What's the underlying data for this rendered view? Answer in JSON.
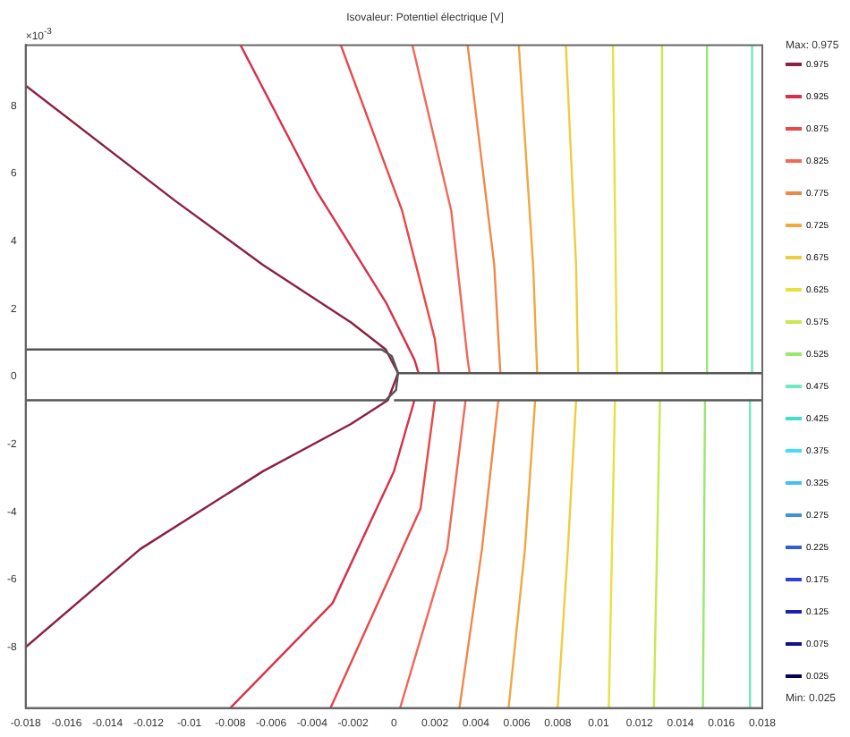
{
  "chart_data": {
    "type": "line",
    "title": "Isovaleur: Potentiel électrique [V]",
    "annotations": [
      "×10$^{-3}$",
      "Max: 0.975",
      "Min: 0.025"
    ],
    "xlim": [
      -0.018,
      0.018
    ],
    "xticks": [
      -0.018,
      -0.016,
      -0.014,
      -0.012,
      -0.01,
      -0.008,
      -0.006,
      -0.004,
      -0.002,
      0,
      0.002,
      0.004,
      0.006,
      0.008,
      0.01,
      0.012,
      0.014,
      0.016,
      0.018
    ],
    "ylim": [
      -9.8,
      9.8
    ],
    "yticks": [
      -8,
      -6,
      -4,
      -2,
      0,
      2,
      4,
      6,
      8
    ],
    "grid": false,
    "legend": "right",
    "marker": "none",
    "line_style": "solid",
    "series": [
      {
        "color": "#555555",
        "x": [
          -0.018,
          -0.0006,
          -0.0001,
          0.0002,
          0.0001,
          -0.0004,
          -0.018
        ],
        "values": [
          0.8,
          0.8,
          0.6,
          0.1,
          -0.4,
          -0.7,
          -0.7
        ]
      },
      {
        "color": "#555555",
        "x": [
          0.0002,
          0.018
        ],
        "values": [
          0.1,
          0.1
        ]
      },
      {
        "color": "#555555",
        "x": [
          0,
          0.018
        ],
        "values": [
          -0.7,
          -0.7
        ]
      },
      {
        "name": "0.975",
        "color": "#8b2040",
        "x": [
          -0.018,
          -0.0107,
          -0.0064,
          -0.0021,
          -0.0004,
          0.0002,
          -0.0003,
          -0.0021,
          -0.0064,
          -0.0124,
          -0.018
        ],
        "values": [
          8.6,
          5.2,
          3.3,
          1.6,
          0.8,
          0.1,
          -0.7,
          -1.4,
          -2.8,
          -5.1,
          -8.0
        ]
      },
      {
        "name": "0.925",
        "color": "#d83048",
        "x": [
          -0.0075,
          -0.0038,
          -0.0004,
          0.001,
          0.0012
        ],
        "values": [
          9.8,
          5.5,
          2.2,
          0.5,
          0.1
        ]
      },
      {
        "color": "#d83048",
        "x": [
          0.001,
          0,
          -0.003,
          -0.008
        ],
        "values": [
          -0.7,
          -2.8,
          -6.7,
          -9.8
        ]
      },
      {
        "name": "0.875",
        "color": "#e84848",
        "x": [
          -0.0026,
          0.0004,
          0.002,
          0.0022
        ],
        "values": [
          9.8,
          4.9,
          1.1,
          0.1
        ]
      },
      {
        "color": "#e84848",
        "x": [
          0.002,
          0.0013,
          -0.0031
        ],
        "values": [
          -0.7,
          -3.9,
          -9.8
        ]
      },
      {
        "name": "0.825",
        "color": "#f06858",
        "x": [
          0.0009,
          0.0028,
          0.0036,
          0.0037
        ],
        "values": [
          9.8,
          4.9,
          0.5,
          0.1
        ]
      },
      {
        "color": "#f06858",
        "x": [
          0.0035,
          0.0026,
          0.0003
        ],
        "values": [
          -0.7,
          -5.1,
          -9.8
        ]
      },
      {
        "name": "0.775",
        "color": "#f08848",
        "x": [
          0.0036,
          0.0049,
          0.0052
        ],
        "values": [
          9.8,
          3.3,
          0.1
        ]
      },
      {
        "color": "#f08848",
        "x": [
          0.0051,
          0.0043,
          0.0032
        ],
        "values": [
          -0.7,
          -5.1,
          -9.8
        ]
      },
      {
        "name": "0.725",
        "color": "#f0a840",
        "x": [
          0.0061,
          0.0068,
          0.007
        ],
        "values": [
          9.8,
          3.3,
          0.1
        ]
      },
      {
        "color": "#f0a840",
        "x": [
          0.0069,
          0.0064,
          0.0056
        ],
        "values": [
          -0.7,
          -5.1,
          -9.8
        ]
      },
      {
        "name": "0.675",
        "color": "#f0cc40",
        "x": [
          0.0084,
          0.0089,
          0.009
        ],
        "values": [
          9.8,
          3.3,
          0.1
        ]
      },
      {
        "color": "#f0cc40",
        "x": [
          0.0089,
          0.0085,
          0.008
        ],
        "values": [
          -0.7,
          -5.1,
          -9.8
        ]
      },
      {
        "name": "0.625",
        "color": "#e8e040",
        "x": [
          0.0107,
          0.0109
        ],
        "values": [
          9.8,
          0.1
        ]
      },
      {
        "color": "#e8e040",
        "x": [
          0.0108,
          0.0105
        ],
        "values": [
          -0.7,
          -9.8
        ]
      },
      {
        "name": "0.575",
        "color": "#c8e850",
        "x": [
          0.0131,
          0.0131
        ],
        "values": [
          9.8,
          0.1
        ]
      },
      {
        "color": "#c8e850",
        "x": [
          0.013,
          0.0127
        ],
        "values": [
          -0.7,
          -9.8
        ]
      },
      {
        "name": "0.525",
        "color": "#98e870",
        "x": [
          0.0153,
          0.0153
        ],
        "values": [
          9.8,
          0.1
        ]
      },
      {
        "color": "#98e870",
        "x": [
          0.0152,
          0.0151
        ],
        "values": [
          -0.7,
          -9.8
        ]
      },
      {
        "name": "0.475",
        "color": "#70e8c0",
        "x": [
          0.0175,
          0.0175
        ],
        "values": [
          9.8,
          0.1
        ]
      },
      {
        "color": "#70e8c0",
        "x": [
          0.0174,
          0.0174
        ],
        "values": [
          -0.7,
          -9.8
        ]
      },
      {
        "name": "0.425",
        "color": "#40e0c8"
      },
      {
        "name": "0.375",
        "color": "#40e0f0"
      },
      {
        "name": "0.325",
        "color": "#40c0f0"
      },
      {
        "name": "0.275",
        "color": "#4090e0"
      },
      {
        "name": "0.225",
        "color": "#3060d0"
      },
      {
        "name": "0.175",
        "color": "#3040e0"
      },
      {
        "name": "0.125",
        "color": "#2020b0"
      },
      {
        "name": "0.075",
        "color": "#101090"
      },
      {
        "name": "0.025",
        "color": "#000060"
      }
    ]
  }
}
